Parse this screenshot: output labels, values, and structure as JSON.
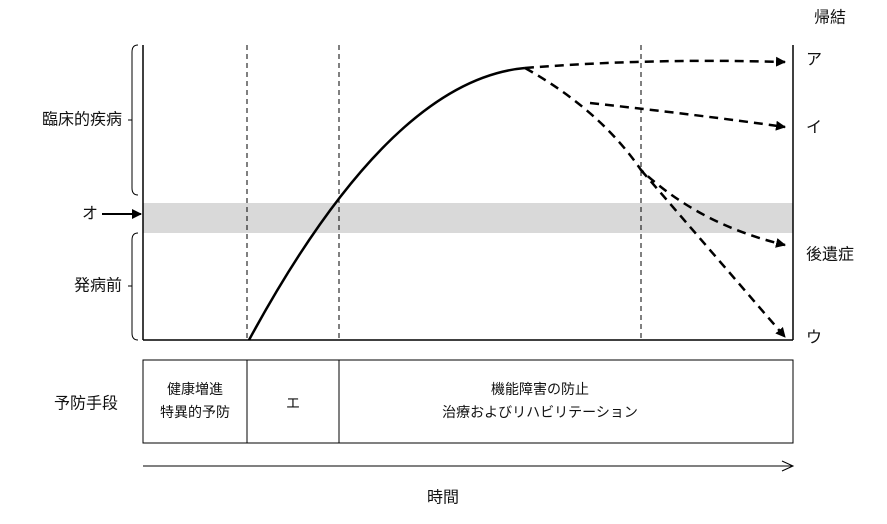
{
  "header": {
    "outcome_title": "帰結"
  },
  "outcomes": [
    "ア",
    "イ",
    "後遺症",
    "ウ"
  ],
  "stages": {
    "clinical": "臨床的疾病",
    "marker": "オ",
    "pre_onset": "発病前"
  },
  "prevention": {
    "title": "予防手段",
    "cells": [
      [
        "健康増進",
        "特異的予防"
      ],
      [
        "エ"
      ],
      [
        "機能障害の防止",
        "治療およびリハビリテーション"
      ]
    ]
  },
  "x_axis": {
    "label": "時間"
  }
}
